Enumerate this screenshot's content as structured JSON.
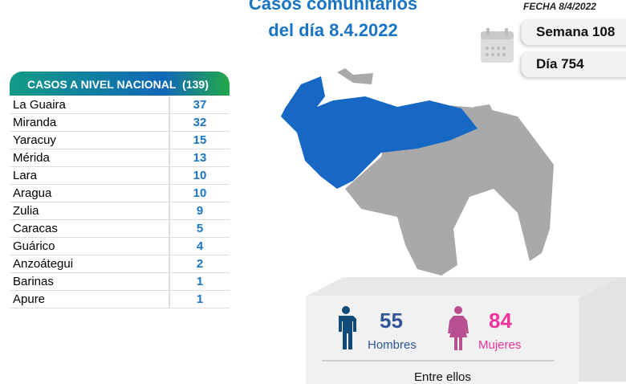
{
  "title": {
    "line1": "Casos comunitarios",
    "line2": "del día 8.4.2022"
  },
  "fecha": "FECHA 8/4/2022",
  "semana": "Semana 108",
  "dia": "Día 754",
  "national": {
    "label": "CASOS A NIVEL NACIONAL",
    "total": "(139)",
    "rows": [
      {
        "state": "La Guaira",
        "cases": "37"
      },
      {
        "state": "Miranda",
        "cases": "32"
      },
      {
        "state": "Yaracuy",
        "cases": "15"
      },
      {
        "state": "Mérida",
        "cases": "13"
      },
      {
        "state": "Lara",
        "cases": "10"
      },
      {
        "state": "Aragua",
        "cases": "10"
      },
      {
        "state": "Zulia",
        "cases": "9"
      },
      {
        "state": "Caracas",
        "cases": "5"
      },
      {
        "state": "Guárico",
        "cases": "4"
      },
      {
        "state": "Anzoátegui",
        "cases": "2"
      },
      {
        "state": "Barinas",
        "cases": "1"
      },
      {
        "state": "Apure",
        "cases": "1"
      }
    ]
  },
  "gender": {
    "men": "55",
    "men_label": "Hombres",
    "women": "84",
    "women_label": "Mujeres",
    "footer": "Entre ellos"
  },
  "colors": {
    "blue": "#1a74c4",
    "men": "#0f4a78",
    "women": "#f0329a"
  }
}
